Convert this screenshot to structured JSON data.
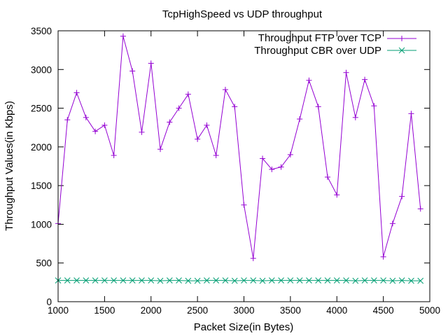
{
  "chart_data": {
    "type": "line",
    "title": "TcpHighSpeed vs UDP throughput",
    "xlabel": "Packet Size(in Bytes)",
    "ylabel": "Throughput Values(in Kbps)",
    "xlim": [
      1000,
      5000
    ],
    "ylim": [
      0,
      3500
    ],
    "x_ticks": [
      1000,
      1500,
      2000,
      2500,
      3000,
      3500,
      4000,
      4500,
      5000
    ],
    "y_ticks": [
      0,
      500,
      1000,
      1500,
      2000,
      2500,
      3000,
      3500
    ],
    "legend_position": "top-right",
    "grid": false,
    "x": [
      1000,
      1100,
      1200,
      1300,
      1400,
      1500,
      1600,
      1700,
      1800,
      1900,
      2000,
      2100,
      2200,
      2300,
      2400,
      2500,
      2600,
      2700,
      2800,
      2900,
      3000,
      3100,
      3200,
      3300,
      3400,
      3500,
      3600,
      3700,
      3800,
      3900,
      4000,
      4100,
      4200,
      4300,
      4400,
      4500,
      4600,
      4700,
      4800,
      4900
    ],
    "series": [
      {
        "name": "Throughput FTP over TCP",
        "color": "#9400d3",
        "marker": "plus",
        "values": [
          1010,
          2350,
          2700,
          2380,
          2200,
          2280,
          1890,
          3430,
          2980,
          2190,
          3080,
          1970,
          2320,
          2500,
          2680,
          2100,
          2280,
          1890,
          2740,
          2520,
          1250,
          560,
          1850,
          1710,
          1740,
          1900,
          2360,
          2860,
          2520,
          1610,
          1380,
          2960,
          2380,
          2870,
          2530,
          580,
          1010,
          1360,
          2430,
          1200
        ]
      },
      {
        "name": "Throughput CBR over UDP",
        "color": "#009e73",
        "marker": "cross",
        "values": [
          275,
          275,
          275,
          275,
          275,
          275,
          275,
          275,
          275,
          275,
          275,
          270,
          275,
          275,
          270,
          270,
          275,
          275,
          275,
          270,
          275,
          275,
          270,
          275,
          275,
          275,
          275,
          275,
          275,
          275,
          275,
          275,
          270,
          275,
          275,
          275,
          270,
          275,
          270,
          270
        ]
      }
    ]
  }
}
